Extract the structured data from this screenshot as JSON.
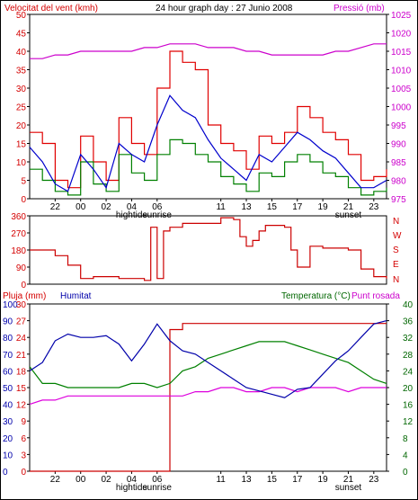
{
  "header": {
    "wind_title": "Velocitat del vent (kmh)",
    "graph_title": "24 hour graph day : 27 Junio 2008",
    "pressure_title": "Pressió (mb)",
    "rain_title": "Pluja (mm)",
    "humidity_title": "Humitat",
    "temperature_title": "Temperatura (°C)",
    "dewpoint_title": "Punt rosada"
  },
  "direction_compass": [
    "N",
    "W",
    "S",
    "E",
    "N"
  ],
  "colors": {
    "wind_gust": "#e00000",
    "wind_avg": "#0000cc",
    "wind_green": "#008000",
    "pressure": "#cc00cc",
    "direction": "#cc0000",
    "humidity": "#0000aa",
    "temperature": "#008000",
    "dewpoint": "#dd00dd",
    "rain": "#cc0000"
  },
  "chart_data": [
    {
      "type": "line",
      "panel": "wind",
      "hours": [
        "22",
        "00",
        "02",
        "04",
        "06",
        "11",
        "13",
        "15",
        "17",
        "19",
        "21",
        "23"
      ],
      "hour_sublabels": [
        "",
        "",
        "",
        "hightide",
        "sunrise",
        "",
        "",
        "",
        "",
        "",
        "sunset",
        ""
      ],
      "x_hours": [
        22,
        24,
        26,
        28,
        30,
        35,
        37,
        39,
        41,
        43,
        45,
        47
      ],
      "x_range": [
        20,
        48
      ],
      "y_left_ticks": [
        0,
        5,
        10,
        15,
        20,
        25,
        30,
        35,
        40,
        45,
        50
      ],
      "ylim_left": [
        0,
        50
      ],
      "y_right_ticks": [
        975,
        980,
        985,
        990,
        995,
        1000,
        1005,
        1010,
        1015,
        1020,
        1025
      ],
      "ylim_right": [
        975,
        1025
      ],
      "x": [
        20,
        21,
        22,
        23,
        24,
        25,
        26,
        27,
        28,
        29,
        30,
        31,
        32,
        33,
        34,
        35,
        36,
        37,
        38,
        39,
        40,
        41,
        42,
        43,
        44,
        45,
        46,
        47,
        48
      ],
      "series": [
        {
          "axis": "left",
          "values": [
            18,
            15,
            5,
            3,
            17,
            10,
            5,
            22,
            15,
            12,
            30,
            40,
            37,
            35,
            20,
            15,
            13,
            8,
            17,
            15,
            18,
            25,
            22,
            18,
            16,
            12,
            5,
            6,
            8
          ]
        },
        {
          "axis": "left",
          "values": [
            14,
            10,
            4,
            2,
            12,
            8,
            3,
            15,
            12,
            10,
            20,
            28,
            24,
            22,
            16,
            11,
            8,
            5,
            12,
            10,
            14,
            18,
            16,
            13,
            11,
            7,
            3,
            3,
            5
          ]
        },
        {
          "axis": "left",
          "values": [
            8,
            5,
            2,
            1,
            10,
            4,
            2,
            12,
            7,
            5,
            12,
            16,
            15,
            12,
            10,
            6,
            4,
            2,
            7,
            6,
            10,
            12,
            10,
            7,
            6,
            3,
            1,
            2,
            3
          ]
        },
        {
          "axis": "right",
          "values": [
            1013,
            1013,
            1014,
            1014,
            1015,
            1015,
            1015,
            1015,
            1015,
            1016,
            1016,
            1017,
            1017,
            1017,
            1016,
            1016,
            1016,
            1015,
            1015,
            1014,
            1014,
            1014,
            1014,
            1014,
            1015,
            1015,
            1016,
            1017,
            1017
          ]
        }
      ]
    },
    {
      "type": "line",
      "panel": "direction",
      "y_ticks": [
        0,
        90,
        180,
        270,
        360
      ],
      "ylim": [
        0,
        360
      ],
      "x": [
        20,
        22,
        23,
        24,
        25,
        27,
        29,
        29.5,
        30,
        30.5,
        31,
        32,
        35,
        36,
        36.5,
        37,
        37.5,
        38,
        38.5,
        40,
        40.5,
        41,
        42,
        43,
        45,
        46,
        47,
        48
      ],
      "series": [
        {
          "values": [
            180,
            150,
            100,
            30,
            40,
            30,
            20,
            300,
            30,
            280,
            300,
            320,
            350,
            340,
            250,
            200,
            230,
            280,
            310,
            300,
            180,
            90,
            200,
            190,
            180,
            80,
            40,
            30
          ]
        }
      ]
    },
    {
      "type": "line",
      "panel": "humidity",
      "y_left_ticks": [
        0,
        3,
        6,
        9,
        12,
        15,
        18,
        21,
        24,
        27,
        30
      ],
      "ylim_left_rain": [
        0,
        30
      ],
      "y_blue_ticks": [
        0,
        10,
        20,
        30,
        40,
        50,
        60,
        70,
        80,
        90,
        100
      ],
      "ylim_humidity": [
        0,
        100
      ],
      "y_right_ticks": [
        0,
        4,
        8,
        12,
        16,
        20,
        24,
        28,
        32,
        36,
        40
      ],
      "ylim_temp": [
        0,
        40
      ],
      "x": [
        20,
        21,
        22,
        23,
        24,
        25,
        26,
        27,
        28,
        29,
        30,
        31,
        32,
        33,
        34,
        35,
        36,
        37,
        38,
        39,
        40,
        41,
        42,
        43,
        44,
        45,
        46,
        47,
        48
      ],
      "series": [
        {
          "axis": "humidity",
          "values": [
            60,
            65,
            78,
            82,
            80,
            80,
            81,
            76,
            66,
            76,
            88,
            78,
            72,
            70,
            65,
            60,
            55,
            50,
            48,
            46,
            44,
            49,
            50,
            58,
            66,
            72,
            80,
            88,
            90
          ]
        },
        {
          "axis": "temp",
          "values": [
            25,
            21,
            21,
            20,
            20,
            20,
            20,
            20,
            21,
            21,
            20,
            21,
            24,
            25,
            27,
            28,
            29,
            30,
            31,
            31,
            31,
            30,
            29,
            28,
            27,
            26,
            24,
            22,
            21
          ]
        },
        {
          "axis": "temp",
          "values": [
            16,
            17,
            17,
            18,
            18,
            18,
            18,
            18,
            18,
            18,
            18,
            18,
            18,
            19,
            19,
            20,
            20,
            19,
            19,
            20,
            20,
            19,
            20,
            20,
            20,
            19,
            20,
            20,
            20
          ]
        },
        {
          "axis": "rain",
          "values": [
            0,
            0,
            0,
            0,
            0,
            0,
            0,
            0,
            0,
            0,
            0,
            25.4,
            26.5,
            26.5,
            26.5,
            26.5,
            26.5,
            26.5,
            26.5,
            26.5,
            26.5,
            26.5,
            26.5,
            26.5,
            26.5,
            26.5,
            26.5,
            26.5,
            26.5
          ]
        }
      ]
    }
  ]
}
